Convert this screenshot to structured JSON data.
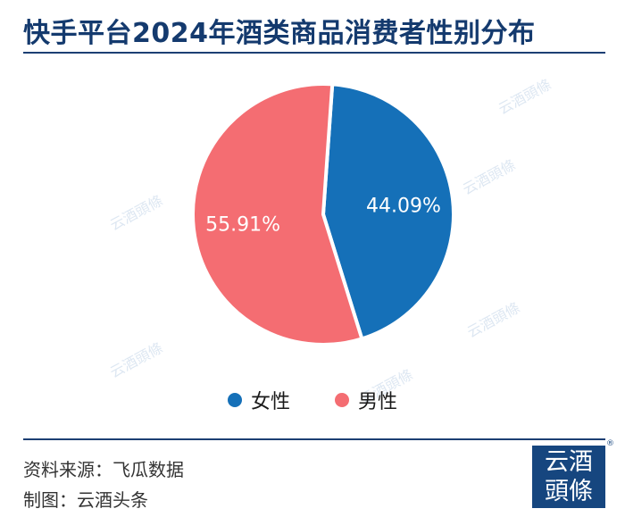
{
  "title": "快手平台2024年酒类商品消费者性别分布",
  "chart_data": {
    "type": "pie",
    "title": "快手平台2024年酒类商品消费者性别分布",
    "slices": [
      {
        "label": "女性",
        "value": 44.09,
        "display": "44.09%",
        "color": "#1570b8"
      },
      {
        "label": "男性",
        "value": 55.91,
        "display": "55.91%",
        "color": "#f46d72"
      }
    ],
    "legend_position": "bottom"
  },
  "footer": {
    "source": "资料来源：飞瓜数据",
    "credit": "制图：云酒头条"
  },
  "logo": {
    "line1": "云酒",
    "line2": "頭條",
    "reg": "®"
  },
  "watermark_text": "云酒頭條"
}
